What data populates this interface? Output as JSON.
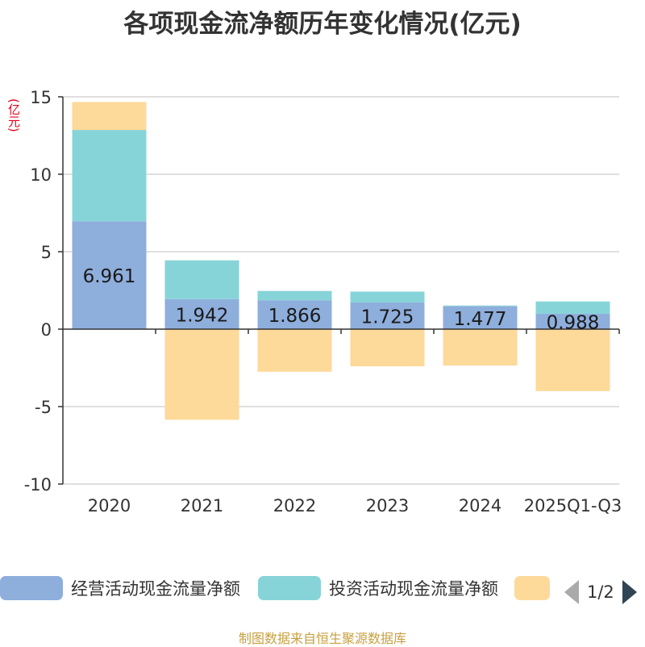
{
  "title": "各项现金流净额历年变化情况(亿元)",
  "unit_label": "(亿元)",
  "source": "制图数据来自恒生聚源数据库",
  "legend": {
    "page": "1/2"
  },
  "colors": {
    "operating": "#8eaedc",
    "investing": "#87d4d8",
    "financing": "#fdd99a",
    "axis": "#333333",
    "grid": "#cccccc"
  },
  "chart_data": {
    "type": "bar",
    "stacked": true,
    "title": "各项现金流净额历年变化情况(亿元)",
    "ylabel": "(亿元)",
    "categories": [
      "2020",
      "2021",
      "2022",
      "2023",
      "2024",
      "2025Q1-Q3"
    ],
    "ylim": [
      -10,
      15
    ],
    "yticks": [
      15,
      10,
      5,
      0,
      -5,
      -10
    ],
    "series": [
      {
        "name": "经营活动现金流量净额",
        "values": [
          6.961,
          1.942,
          1.866,
          1.725,
          1.477,
          0.988
        ],
        "labels": [
          "6.961",
          "1.942",
          "1.866",
          "1.725",
          "1.477",
          "0.988"
        ]
      },
      {
        "name": "投资活动现金流量净额",
        "values": [
          5.9,
          2.5,
          0.6,
          0.7,
          0.05,
          0.8
        ]
      },
      {
        "name": "",
        "values": [
          1.8,
          -5.85,
          -2.75,
          -2.4,
          -2.35,
          -4.0
        ]
      }
    ]
  }
}
